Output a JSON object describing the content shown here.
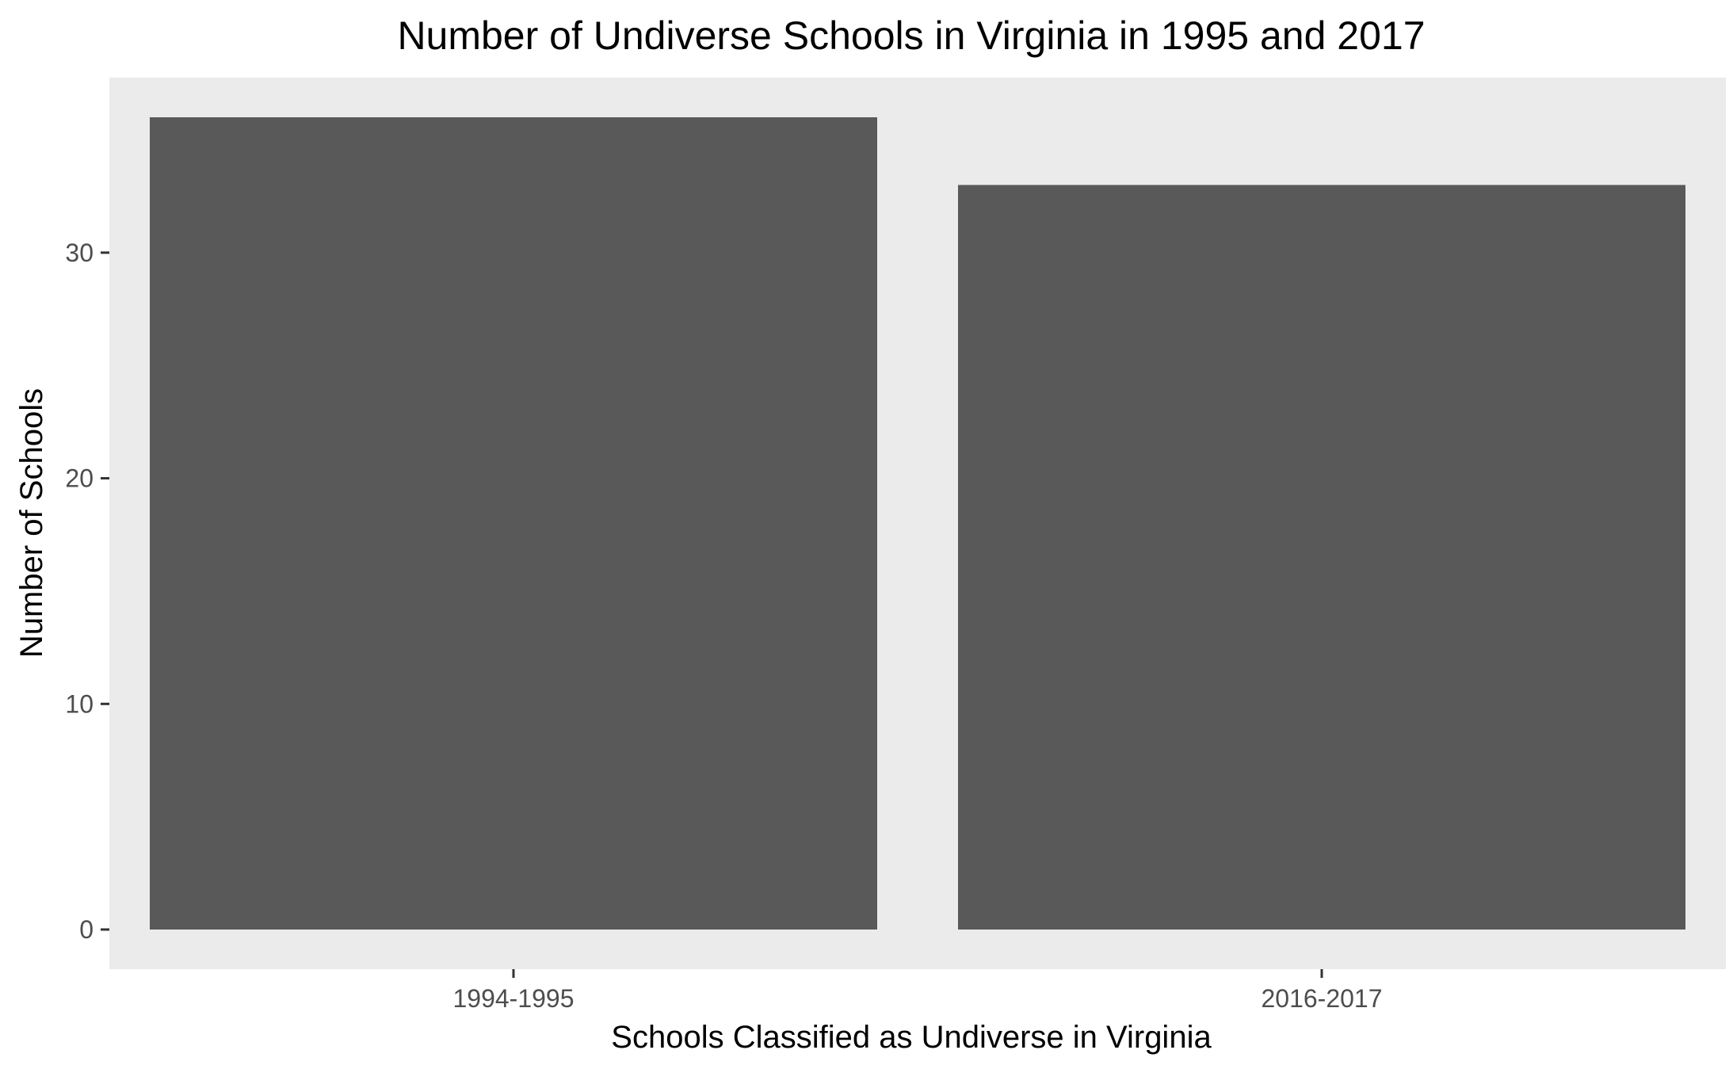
{
  "chart_data": {
    "type": "bar",
    "title": "Number of Undiverse Schools in Virginia in 1995 and 2017",
    "xlabel": "Schools Classified as Undiverse in Virginia",
    "ylabel": "Number of Schools",
    "categories": [
      "1994-1995",
      "2016-2017"
    ],
    "values": [
      36,
      33
    ],
    "ylim": [
      0,
      36
    ],
    "yticks": [
      0,
      10,
      20,
      30
    ],
    "grid": false,
    "legend": "none",
    "colors": {
      "bar": "#595959",
      "panel": "#ebebeb",
      "tick": "#333333",
      "tick_label": "#4d4d4d",
      "text": "#000000"
    }
  }
}
